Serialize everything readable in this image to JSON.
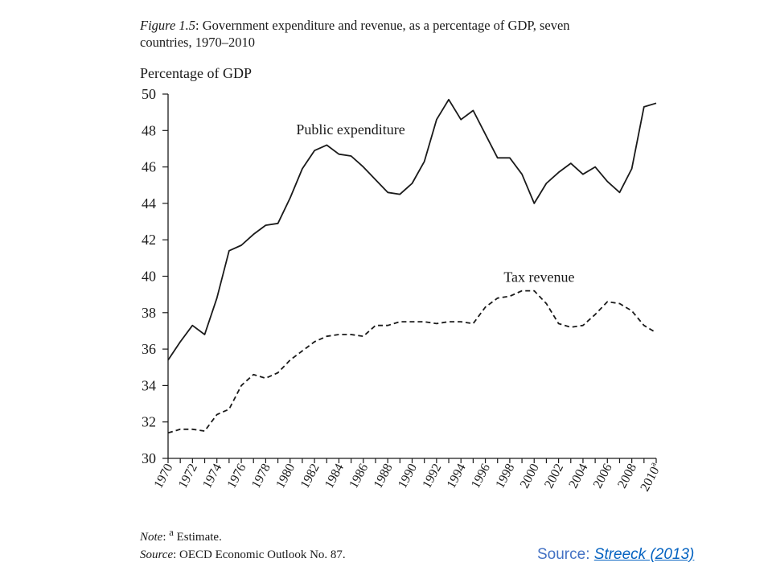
{
  "figure": {
    "label": "Figure 1.5",
    "title_text": "Government expenditure and revenue, as a percentage of GDP, seven countries, 1970–2010"
  },
  "note": {
    "label": "Note",
    "superscript": "a",
    "text": "Estimate."
  },
  "source": {
    "label": "Source",
    "text": "OECD Economic Outlook No. 87."
  },
  "slide_source": {
    "prefix": "Source:",
    "link_text": "Streeck (2013)"
  },
  "chart_data": {
    "type": "line",
    "title": "",
    "xlabel": "",
    "ylabel": "Percentage of GDP",
    "ylim": [
      30,
      50
    ],
    "yticks": [
      30,
      32,
      34,
      36,
      38,
      40,
      42,
      44,
      46,
      48,
      50
    ],
    "xlim": [
      1970,
      2010
    ],
    "xtick_labels": [
      "1970",
      "1972",
      "1974",
      "1976",
      "1978",
      "1980",
      "1982",
      "1984",
      "1986",
      "1988",
      "1990",
      "1992",
      "1994",
      "1996",
      "1998",
      "2000",
      "2002",
      "2004",
      "2006",
      "2008",
      "2010"
    ],
    "xtick_superscript": {
      "2010": "a"
    },
    "grid": false,
    "legend": "none",
    "x": [
      1970,
      1971,
      1972,
      1973,
      1974,
      1975,
      1976,
      1977,
      1978,
      1979,
      1980,
      1981,
      1982,
      1983,
      1984,
      1985,
      1986,
      1987,
      1988,
      1989,
      1990,
      1991,
      1992,
      1993,
      1994,
      1995,
      1996,
      1997,
      1998,
      1999,
      2000,
      2001,
      2002,
      2003,
      2004,
      2005,
      2006,
      2007,
      2008,
      2009,
      2010
    ],
    "series": [
      {
        "name": "Public expenditure",
        "style": "solid",
        "color": "#1a1a1a",
        "label_at": [
          1980.5,
          47.8
        ],
        "values": [
          35.4,
          36.4,
          37.3,
          36.8,
          38.8,
          41.4,
          41.7,
          42.3,
          42.8,
          42.9,
          44.3,
          45.9,
          46.9,
          47.2,
          46.7,
          46.6,
          46.0,
          45.3,
          44.6,
          44.5,
          45.1,
          46.3,
          48.6,
          49.7,
          48.6,
          49.1,
          47.8,
          46.5,
          46.5,
          45.6,
          44.0,
          45.1,
          45.7,
          46.2,
          45.6,
          46.0,
          45.2,
          44.6,
          45.9,
          49.3,
          49.5
        ]
      },
      {
        "name": "Tax revenue",
        "style": "dashed",
        "color": "#1a1a1a",
        "label_at": [
          1997.5,
          39.7
        ],
        "values": [
          31.4,
          31.6,
          31.6,
          31.5,
          32.4,
          32.7,
          34.0,
          34.6,
          34.4,
          34.7,
          35.4,
          35.9,
          36.4,
          36.7,
          36.8,
          36.8,
          36.7,
          37.3,
          37.3,
          37.5,
          37.5,
          37.5,
          37.4,
          37.5,
          37.5,
          37.4,
          38.3,
          38.8,
          38.9,
          39.2,
          39.2,
          38.5,
          37.4,
          37.2,
          37.3,
          37.9,
          38.6,
          38.5,
          38.1,
          37.3,
          36.9
        ]
      }
    ]
  }
}
